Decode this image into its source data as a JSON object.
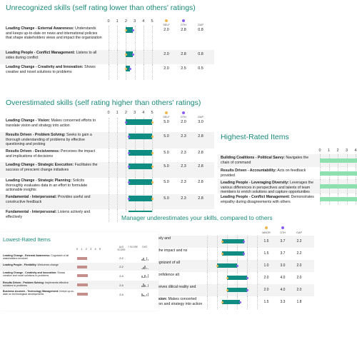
{
  "colors": {
    "self": "#f2b84b",
    "others": "#8b5cf6",
    "bar": "#0f8d82",
    "title": "#1a8a7a",
    "highest": "#8fe0b0",
    "lowest": "#c48f8a"
  },
  "axis_ticks": [
    "0",
    "1",
    "2",
    "3",
    "4",
    "5"
  ],
  "col_headers": {
    "self": "SELF",
    "others": "OTH",
    "gap": "GAP",
    "avg_score": "AVG SCORE",
    "score": "7 SCORE",
    "dist": "DIST"
  },
  "unrecognized": {
    "title": "Unrecognized skills (self rating lower than others' ratings)",
    "rows": [
      {
        "bold": "Leading Change - External Awareness:",
        "text": " Understands and keeps up-to-date on news and international policies that shape stakeholders views and impact the organization",
        "self": "2.0",
        "others": "2.8",
        "gap": "0.8",
        "sv": 2.0,
        "ov": 2.8
      },
      {
        "bold": "Leading People - Conflict Management:",
        "text": " Listens to all sides during conflict",
        "self": "2.0",
        "others": "2.8",
        "gap": "0.8",
        "sv": 2.0,
        "ov": 2.8
      },
      {
        "bold": "Leading Change - Creativity and Innovation:",
        "text": " Shows creative and novel solutions to problems",
        "self": "2.0",
        "others": "2.5",
        "gap": "0.5",
        "sv": 2.0,
        "ov": 2.5
      }
    ]
  },
  "overestimated": {
    "title": "Overestimated skills (self rating higher than others' ratings)",
    "rows": [
      {
        "bold": "Leading Change - Vision:",
        "text": " Makes concerned efforts to translate vision and strategy into action",
        "self": "5.0",
        "others": "2.0",
        "gap": "3.0",
        "sv": 5.0,
        "ov": 2.0
      },
      {
        "bold": "Results Driven - Problem Solving:",
        "text": " Seeks to gain a thorough understanding of problems by effective questioning and probing",
        "self": "5.0",
        "others": "2.3",
        "gap": "2.8",
        "sv": 5.0,
        "ov": 2.3
      },
      {
        "bold": "Results Driven - Decisiveness:",
        "text": " Perceives the impact and implications of decisions",
        "self": "5.0",
        "others": "2.3",
        "gap": "2.8",
        "sv": 5.0,
        "ov": 2.3
      },
      {
        "bold": "Leading Change - Strategic Execution:",
        "text": " Facilitates the success of prescient change initiatives",
        "self": "5.0",
        "others": "2.3",
        "gap": "2.8",
        "sv": 5.0,
        "ov": 2.3
      },
      {
        "bold": "Leading Change - Strategic Planning:",
        "text": " Solicits thoroughly evaluates data in an effort to formulate actionable insights",
        "self": "5.0",
        "others": "2.3",
        "gap": "2.8",
        "sv": 5.0,
        "ov": 2.3
      },
      {
        "bold": "Fundamental - Interpersonal:",
        "text": " Provides useful and constructive feedback",
        "self": "5.0",
        "others": "2.3",
        "gap": "2.8",
        "sv": 5.0,
        "ov": 2.3
      },
      {
        "bold": "Fundamental - Interpersonal:",
        "text": " Listens actively and effectively",
        "self": "",
        "others": "",
        "gap": "",
        "sv": 5.0,
        "ov": 2.3
      }
    ]
  },
  "highest": {
    "title": "Highest-Rated Items",
    "rows": [
      {
        "bold": "Building Coalitions - Political Savvy:",
        "text": " Navigates the chain of command",
        "v": 5.0
      },
      {
        "bold": "Results Driven - Accountability:",
        "text": " Acts on feedback provided",
        "v": 5.0
      },
      {
        "bold": "Leading People - Leveraging Diversity:",
        "text": " Leverages the various differences in perspectives and talents of team members to enrich solutions and capture opportunities",
        "v": 5.0
      },
      {
        "bold": "Leading People - Conflict Management:",
        "text": " Demonstrates empathy during disagreements with others",
        "v": 5.0
      }
    ]
  },
  "manager": {
    "title": "Manager underestimates your skills, compared to others",
    "col_headers": {
      "manager": "MNGR",
      "others": "OTH",
      "gap": "GAP"
    },
    "rows": [
      {
        "bold": "ersonal:",
        "text": " Listens actively and",
        "m": "1.5",
        "o": "3.7",
        "g": "2.2",
        "mv": 1.5,
        "ov": 3.7
      },
      {
        "bold": "siveness:",
        "text": " Perceives the impact and ns",
        "m": "1.5",
        "o": "3.7",
        "g": "2.2",
        "mv": 1.5,
        "ov": 3.7
      },
      {
        "bold": "ernal Awareness:",
        "text": " Cognizant of all",
        "m": "1.0",
        "o": "3.0",
        "g": "2.0",
        "mv": 1.0,
        "ov": 3.0
      },
      {
        "bold": "siveness:",
        "text": " Acts with confidence alt",
        "m": "2.0",
        "o": "4.0",
        "g": "2.0",
        "mv": 2.0,
        "ov": 4.0
      },
      {
        "bold": "Political Savvy:",
        "text": " Perceives ditical reality and acts accordingly",
        "m": "2.0",
        "o": "4.0",
        "g": "2.0",
        "mv": 2.0,
        "ov": 4.0
      },
      {
        "bold": "Leading Change - Vision:",
        "text": " Makes concerted efforts to translate vision and strategy into action",
        "m": "1.5",
        "o": "3.3",
        "g": "1.8",
        "mv": 1.5,
        "ov": 3.3
      }
    ]
  },
  "lowest": {
    "title": "Lowest-Rated Items",
    "rows": [
      {
        "bold": "Leading Change - External Awareness:",
        "text": " Cognizant of all stakeholders involved",
        "score": "2.2",
        "v": 2.2
      },
      {
        "bold": "Leading People - Flexibility:",
        "text": " Welcomes change",
        "score": "2.2",
        "v": 2.2
      },
      {
        "bold": "Leading Change - Creativity and Innovation:",
        "text": " Shows creative and novel solutions to problems",
        "score": "2.4",
        "v": 2.4
      },
      {
        "bold": "Results Driven - Problem Solving:",
        "text": " Implements effective solutions to problems",
        "score": "2.4",
        "v": 2.4
      },
      {
        "bold": "Business Acumen - Technology Management:",
        "text": " Keeps up-to-date on technological developments",
        "score": "2.4",
        "v": 2.4
      }
    ]
  }
}
